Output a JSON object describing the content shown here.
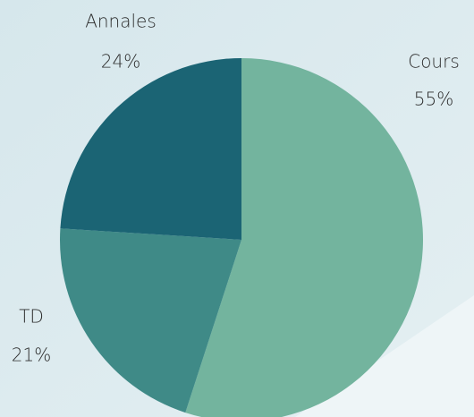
{
  "chart_data": {
    "type": "pie",
    "categories": [
      "Cours",
      "TD",
      "Annales"
    ],
    "values": [
      55,
      21,
      24
    ],
    "value_labels": [
      "55%",
      "21%",
      "24%"
    ],
    "colors": [
      "#73b49e",
      "#3f8a87",
      "#1b6474"
    ]
  }
}
